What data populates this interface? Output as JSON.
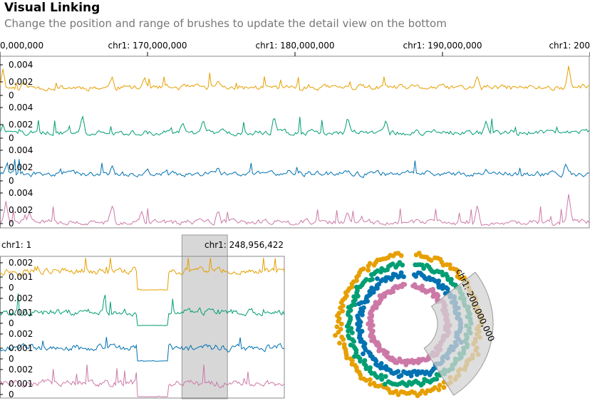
{
  "header": {
    "title": "Visual Linking",
    "subtitle": "Change the position and range of brushes to update the detail view on the bottom"
  },
  "colors": {
    "series": [
      "#E69F00",
      "#009E73",
      "#0072B2",
      "#CC79A7"
    ],
    "axis": "#888888",
    "brush_fill": "#d3d3d3",
    "brush_stroke": "#999999"
  },
  "chart_data": [
    {
      "type": "area",
      "view": "top-overview",
      "chromosome": "chr1",
      "x_ticks": [
        "0,000,000",
        "chr1: 170,000,000",
        "chr1: 180,000,000",
        "chr1: 190,000,000",
        "chr1: 200"
      ],
      "xlim": [
        160000000,
        200000000
      ],
      "y_ticks": [
        "0.004",
        "0.002",
        "0"
      ],
      "ylim": [
        0,
        0.005
      ],
      "series": [
        {
          "color": "#E69F00",
          "baseline": 0.0015,
          "peaks": [
            [
              0.005,
              0.0038
            ],
            [
              0.04,
              0.0021
            ],
            [
              0.19,
              0.0029
            ],
            [
              0.245,
              0.0028
            ],
            [
              0.37,
              0.0024
            ],
            [
              0.81,
              0.0029
            ],
            [
              0.965,
              0.0042
            ],
            [
              0.99,
              0.0019
            ]
          ]
        },
        {
          "color": "#009E73",
          "baseline": 0.0012,
          "peaks": [
            [
              0.005,
              0.0022
            ],
            [
              0.14,
              0.0033
            ],
            [
              0.31,
              0.0025
            ],
            [
              0.345,
              0.0028
            ],
            [
              0.465,
              0.0034
            ],
            [
              0.59,
              0.0032
            ],
            [
              0.655,
              0.0029
            ],
            [
              0.825,
              0.0027
            ]
          ]
        },
        {
          "color": "#0072B2",
          "baseline": 0.0014,
          "peaks": [
            [
              0.01,
              0.0023
            ],
            [
              0.19,
              0.0024
            ],
            [
              0.25,
              0.0021
            ],
            [
              0.37,
              0.0022
            ],
            [
              0.49,
              0.0019
            ],
            [
              0.825,
              0.002
            ],
            [
              0.96,
              0.0026
            ]
          ]
        },
        {
          "color": "#CC79A7",
          "baseline": 0.0007,
          "peaks": [
            [
              0.01,
              0.0033
            ],
            [
              0.05,
              0.0019
            ],
            [
              0.19,
              0.0028
            ],
            [
              0.24,
              0.0022
            ],
            [
              0.37,
              0.0022
            ],
            [
              0.59,
              0.002
            ],
            [
              0.81,
              0.0029
            ],
            [
              0.965,
              0.0042
            ]
          ]
        }
      ]
    },
    {
      "type": "area",
      "view": "bottom-detail",
      "chromosome": "chr1",
      "x_ticks": [
        "chr1: 1",
        "chr1: 248,956,422"
      ],
      "xlim": [
        1,
        248956422
      ],
      "y_ticks": [
        "0.002",
        "0.001",
        "0"
      ],
      "ylim": [
        0,
        0.0025
      ],
      "brush": {
        "from": 0.64,
        "to": 0.8
      },
      "gap": {
        "from": 0.48,
        "to": 0.59
      },
      "series": [
        {
          "color": "#E69F00",
          "baseline": 0.0015
        },
        {
          "color": "#009E73",
          "baseline": 0.0011
        },
        {
          "color": "#0072B2",
          "baseline": 0.0011
        },
        {
          "color": "#CC79A7",
          "baseline": 0.0011
        }
      ]
    },
    {
      "type": "scatter",
      "view": "circular",
      "label": "chr1: 200,000,000",
      "brush_angle": {
        "from": 52,
        "to": 148
      },
      "rings": [
        {
          "color": "#E69F00"
        },
        {
          "color": "#009E73"
        },
        {
          "color": "#0072B2"
        },
        {
          "color": "#CC79A7"
        }
      ]
    }
  ]
}
